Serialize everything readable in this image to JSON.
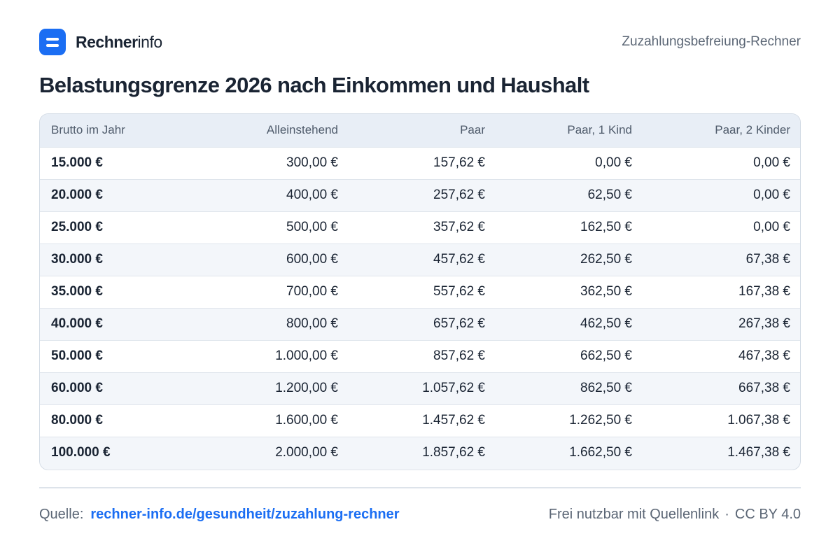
{
  "brand": {
    "name_bold": "Rechner",
    "name_light": "info"
  },
  "header": {
    "subtitle": "Zuzahlungsbefreiung-Rechner"
  },
  "title": "Belastungsgrenze 2026 nach Einkommen und Haushalt",
  "table": {
    "headers": [
      "Brutto im Jahr",
      "Alleinstehend",
      "Paar",
      "Paar, 1 Kind",
      "Paar, 2 Kinder"
    ],
    "rows": [
      [
        "15.000 €",
        "300,00 €",
        "157,62 €",
        "0,00 €",
        "0,00 €"
      ],
      [
        "20.000 €",
        "400,00 €",
        "257,62 €",
        "62,50 €",
        "0,00 €"
      ],
      [
        "25.000 €",
        "500,00 €",
        "357,62 €",
        "162,50 €",
        "0,00 €"
      ],
      [
        "30.000 €",
        "600,00 €",
        "457,62 €",
        "262,50 €",
        "67,38 €"
      ],
      [
        "35.000 €",
        "700,00 €",
        "557,62 €",
        "362,50 €",
        "167,38 €"
      ],
      [
        "40.000 €",
        "800,00 €",
        "657,62 €",
        "462,50 €",
        "267,38 €"
      ],
      [
        "50.000 €",
        "1.000,00 €",
        "857,62 €",
        "662,50 €",
        "467,38 €"
      ],
      [
        "60.000 €",
        "1.200,00 €",
        "1.057,62 €",
        "862,50 €",
        "667,38 €"
      ],
      [
        "80.000 €",
        "1.600,00 €",
        "1.457,62 €",
        "1.262,50 €",
        "1.067,38 €"
      ],
      [
        "100.000 €",
        "2.000,00 €",
        "1.857,62 €",
        "1.662,50 €",
        "1.467,38 €"
      ]
    ]
  },
  "footer": {
    "source_label": "Quelle:",
    "source_link": "rechner-info.de/gesundheit/zuzahlung-rechner",
    "license_text": "Frei nutzbar mit Quellenlink",
    "separator": "·",
    "license": "CC BY 4.0"
  },
  "colors": {
    "accent": "#1b6ef3",
    "header_bg": "#e8eef6",
    "stripe": "#f3f6fa"
  }
}
